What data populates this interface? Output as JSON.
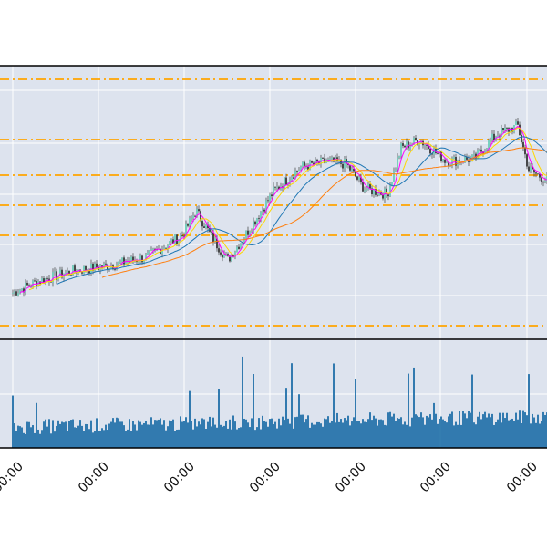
{
  "chart_data": {
    "type": "candlestick",
    "title": "",
    "xlabel": "",
    "ylabel": "",
    "grid": true,
    "x_tick_labels": [
      "00:00",
      "00:00",
      "00:00",
      "00:00",
      "00:00",
      "00:00",
      "00:00"
    ],
    "price_panel": {
      "ylim": [
        0,
        100
      ],
      "horizontal_levels": [
        95,
        73,
        60,
        49,
        38,
        5
      ],
      "level_color": "#ffa500",
      "moving_averages": [
        {
          "color": "#ff00ff"
        },
        {
          "color": "#ffd700"
        },
        {
          "color": "#1f77b4"
        },
        {
          "color": "#ff7f0e"
        }
      ],
      "candle_up_color": "#5fc8b3",
      "candle_down_color": "#222222"
    },
    "volume_panel": {
      "ylim": [
        0,
        100
      ],
      "bar_color": "#1f6fa8"
    },
    "panel_background": "#dde3ee"
  }
}
